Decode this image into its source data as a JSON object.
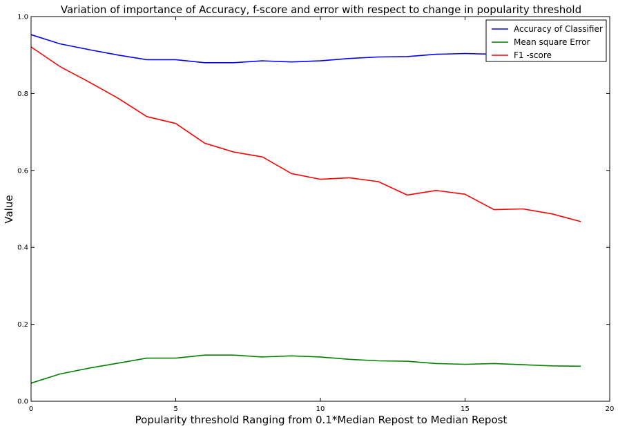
{
  "chart_data": {
    "type": "line",
    "title": "Variation of importance of Accuracy, f-score and error with respect to change in popularity threshold",
    "xlabel": "Popularity threshold Ranging from 0.1*Median Repost to Median Repost",
    "ylabel": "Value",
    "xlim": [
      0,
      20
    ],
    "ylim": [
      0.0,
      1.0
    ],
    "x_ticks": [
      "0",
      "5",
      "10",
      "15",
      "20"
    ],
    "y_ticks": [
      "0.0",
      "0.2",
      "0.4",
      "0.6",
      "0.8",
      "1.0"
    ],
    "grid": false,
    "legend_position": "top-right",
    "x": [
      0,
      1,
      2,
      3,
      4,
      5,
      6,
      7,
      8,
      9,
      10,
      11,
      12,
      13,
      14,
      15,
      16,
      17,
      18,
      19
    ],
    "series": [
      {
        "name": "Accuracy of Classifier",
        "color": "#0000ff",
        "values": [
          0.953,
          0.929,
          0.914,
          0.9,
          0.888,
          0.888,
          0.88,
          0.88,
          0.885,
          0.882,
          0.885,
          0.891,
          0.895,
          0.896,
          0.902,
          0.904,
          0.902,
          0.904,
          0.906,
          0.909
        ]
      },
      {
        "name": "Mean square Error",
        "color": "#008000",
        "values": [
          0.047,
          0.071,
          0.086,
          0.099,
          0.112,
          0.112,
          0.12,
          0.12,
          0.115,
          0.118,
          0.115,
          0.109,
          0.105,
          0.104,
          0.098,
          0.096,
          0.098,
          0.095,
          0.092,
          0.091
        ]
      },
      {
        "name": "F1 -score",
        "color": "#ff0000",
        "values": [
          0.921,
          0.87,
          0.83,
          0.788,
          0.74,
          0.722,
          0.671,
          0.648,
          0.635,
          0.592,
          0.577,
          0.581,
          0.571,
          0.536,
          0.548,
          0.538,
          0.498,
          0.5,
          0.487,
          0.467
        ]
      }
    ]
  }
}
